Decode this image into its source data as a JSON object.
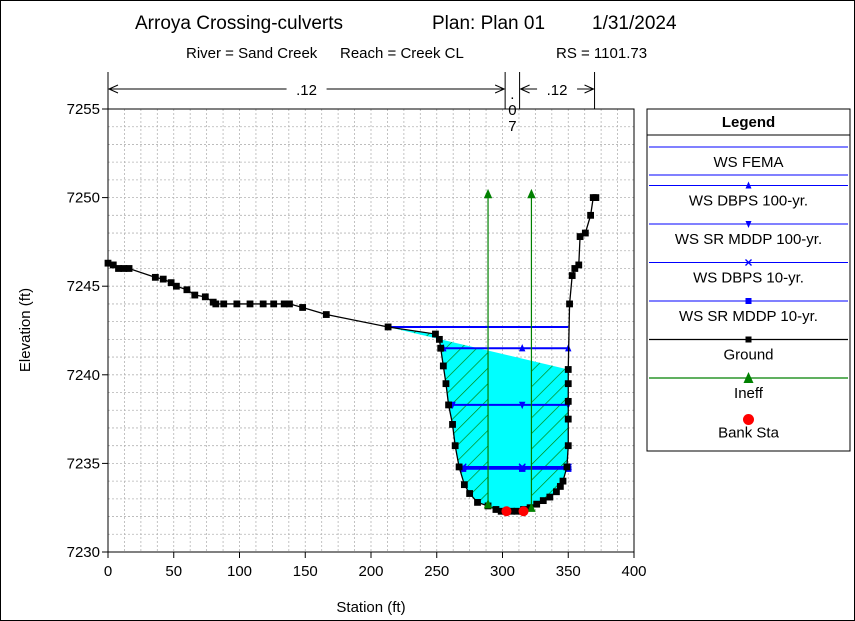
{
  "chart_data": {
    "type": "line",
    "title": "Arroya Crossing-culverts",
    "plan": "Plan: Plan 01",
    "date": "1/31/2024",
    "subtitle": {
      "river": "River = Sand Creek",
      "reach": "Reach = Creek CL",
      "rs": "RS = 1101.73"
    },
    "xlabel": "Station (ft)",
    "ylabel": "Elevation (ft)",
    "xlim": [
      0,
      400
    ],
    "ylim": [
      7230,
      7255
    ],
    "xticks": [
      0,
      50,
      100,
      150,
      200,
      250,
      300,
      350,
      400
    ],
    "yticks": [
      7230,
      7235,
      7240,
      7245,
      7250,
      7255
    ],
    "grid": true,
    "legend_position": "right",
    "manning": [
      {
        "label": ".12",
        "from": 0,
        "to": 302
      },
      {
        "label": ".07",
        "from": 302,
        "to": 313
      },
      {
        "label": ".12",
        "from": 313,
        "to": 370
      }
    ],
    "series": [
      {
        "name": "WS FEMA",
        "color": "#0000ff",
        "marker": "none",
        "x": [
          213,
          350
        ],
        "y": [
          7242.7,
          7242.7
        ]
      },
      {
        "name": "WS DBPS 100-yr.",
        "color": "#0000ff",
        "marker": "triangle-up",
        "x": [
          255,
          315,
          350
        ],
        "y": [
          7241.5,
          7241.5,
          7241.5
        ]
      },
      {
        "name": "WS SR MDDP 100-yr.",
        "color": "#0000ff",
        "marker": "triangle-down",
        "x": [
          262,
          315,
          350
        ],
        "y": [
          7238.3,
          7238.3,
          7238.3
        ]
      },
      {
        "name": "WS DBPS 10-yr.",
        "color": "#0000ff",
        "marker": "x",
        "x": [
          270,
          315,
          350
        ],
        "y": [
          7234.8,
          7234.8,
          7234.8
        ]
      },
      {
        "name": "WS SR MDDP 10-yr.",
        "color": "#0000ff",
        "marker": "square",
        "x": [
          270,
          315,
          350
        ],
        "y": [
          7234.7,
          7234.7,
          7234.7
        ]
      },
      {
        "name": "Ground",
        "color": "#000000",
        "marker": "square",
        "x": [
          0,
          4,
          8,
          12,
          16,
          36,
          42,
          48,
          52,
          60,
          66,
          74,
          80,
          82,
          88,
          98,
          108,
          118,
          126,
          134,
          138,
          148,
          166,
          213,
          249,
          252,
          253,
          255,
          257,
          259,
          262,
          264,
          267,
          271,
          275,
          281,
          289,
          295,
          299,
          303,
          307,
          311,
          316,
          321,
          326,
          331,
          336,
          341,
          344,
          346,
          349,
          350,
          350,
          350,
          350,
          350,
          351,
          353,
          355,
          358,
          359,
          363,
          367,
          369,
          371
        ],
        "y": [
          7246.3,
          7246.2,
          7246.0,
          7246.0,
          7246.0,
          7245.5,
          7245.4,
          7245.2,
          7245.0,
          7244.8,
          7244.5,
          7244.4,
          7244.1,
          7244.0,
          7244.0,
          7244.0,
          7244.0,
          7244.0,
          7244.0,
          7244.0,
          7244.0,
          7243.8,
          7243.4,
          7242.7,
          7242.3,
          7242.0,
          7241.5,
          7240.5,
          7239.5,
          7238.3,
          7237.2,
          7236.0,
          7234.8,
          7233.8,
          7233.3,
          7232.8,
          7232.6,
          7232.4,
          7232.3,
          7232.3,
          7232.3,
          7232.3,
          7232.4,
          7232.5,
          7232.7,
          7232.9,
          7233.1,
          7233.4,
          7233.7,
          7234.0,
          7234.8,
          7236.0,
          7237.5,
          7238.5,
          7239.5,
          7240.3,
          7244.0,
          7245.6,
          7246.0,
          7246.2,
          7247.8,
          7248.0,
          7249.0,
          7250.0,
          7250.0
        ]
      },
      {
        "name": "Ineff",
        "color": "#008000",
        "marker": "triangle-up",
        "segments": [
          {
            "x": [
              289,
              289
            ],
            "y": [
              7232.7,
              7250.2
            ]
          },
          {
            "x": [
              322,
              322
            ],
            "y": [
              7232.5,
              7250.2
            ]
          }
        ]
      },
      {
        "name": "Bank Sta",
        "color": "#ff0000",
        "marker": "circle",
        "x": [
          303,
          316
        ],
        "y": [
          7232.3,
          7232.3
        ]
      }
    ],
    "water_fill": {
      "elevation": 7242.7,
      "color": "#00ffff",
      "ineffective_hatch_color": "#008000"
    }
  },
  "legend": {
    "title": "Legend",
    "items": [
      "WS FEMA",
      "WS DBPS 100-yr.",
      "WS SR MDDP 100-yr.",
      "WS DBPS 10-yr.",
      "WS SR MDDP 10-yr.",
      "Ground",
      "Ineff",
      "Bank Sta"
    ]
  }
}
